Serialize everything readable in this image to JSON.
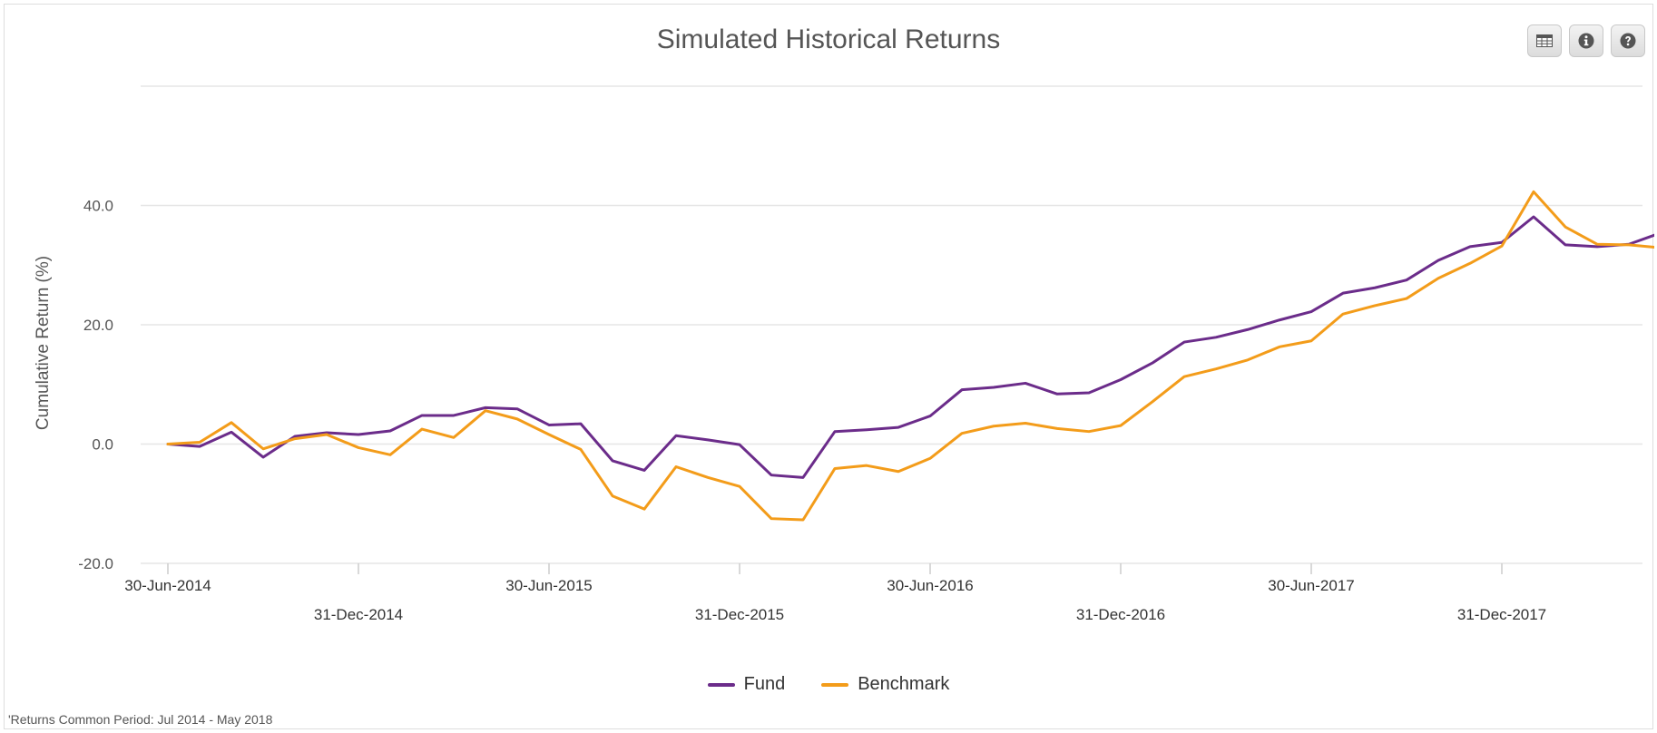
{
  "colors": {
    "fund": "#6b2c8a",
    "benchmark": "#f39c1a",
    "grid": "#e6e6e6",
    "axis_text": "#555555"
  },
  "toolbar": {
    "icons": [
      "table-icon",
      "info-icon",
      "help-icon"
    ]
  },
  "legend": {
    "fund_label": "Fund",
    "benchmark_label": "Benchmark"
  },
  "footnote": "'Returns Common Period: Jul 2014 - May 2018",
  "chart_data": {
    "type": "line",
    "title": "Simulated Historical Returns",
    "xlabel": "",
    "ylabel": "Cumulative Return (%)",
    "ylim": [
      -20,
      60
    ],
    "yticks": [
      -20,
      0,
      20,
      40
    ],
    "ytick_labels": [
      "-20.0",
      "0.0",
      "20.0",
      "40.0"
    ],
    "grid": true,
    "legend_position": "bottom-center",
    "x": [
      "30-Jun-2014",
      "31-Jul-2014",
      "31-Aug-2014",
      "30-Sep-2014",
      "31-Oct-2014",
      "30-Nov-2014",
      "31-Dec-2014",
      "31-Jan-2015",
      "28-Feb-2015",
      "31-Mar-2015",
      "30-Apr-2015",
      "31-May-2015",
      "30-Jun-2015",
      "31-Jul-2015",
      "31-Aug-2015",
      "30-Sep-2015",
      "31-Oct-2015",
      "30-Nov-2015",
      "31-Dec-2015",
      "31-Jan-2016",
      "29-Feb-2016",
      "31-Mar-2016",
      "30-Apr-2016",
      "31-May-2016",
      "30-Jun-2016",
      "31-Jul-2016",
      "31-Aug-2016",
      "30-Sep-2016",
      "31-Oct-2016",
      "30-Nov-2016",
      "31-Dec-2016",
      "31-Jan-2017",
      "28-Feb-2017",
      "31-Mar-2017",
      "30-Apr-2017",
      "31-May-2017",
      "30-Jun-2017",
      "31-Jul-2017",
      "31-Aug-2017",
      "30-Sep-2017",
      "31-Oct-2017",
      "30-Nov-2017",
      "31-Dec-2017",
      "31-Jan-2018",
      "28-Feb-2018",
      "31-Mar-2018",
      "30-Apr-2018",
      "31-May-2018"
    ],
    "xtick_labels": [
      "30-Jun-2014",
      "31-Dec-2014",
      "30-Jun-2015",
      "31-Dec-2015",
      "30-Jun-2016",
      "31-Dec-2016",
      "30-Jun-2017",
      "31-Dec-2017"
    ],
    "series": [
      {
        "name": "Fund",
        "color": "#6b2c8a",
        "values": [
          0.0,
          -0.4,
          2.0,
          -2.2,
          1.3,
          1.9,
          1.6,
          2.2,
          4.8,
          4.8,
          6.1,
          5.9,
          3.2,
          3.4,
          -2.8,
          -4.4,
          1.4,
          0.7,
          -0.1,
          -5.2,
          -5.6,
          2.1,
          2.4,
          2.8,
          4.7,
          9.1,
          9.5,
          10.2,
          8.4,
          8.6,
          10.8,
          13.6,
          17.1,
          17.9,
          19.2,
          20.8,
          22.2,
          25.3,
          26.2,
          27.5,
          30.8,
          33.1,
          33.8,
          38.1,
          33.4,
          33.1,
          33.5,
          35.4
        ]
      },
      {
        "name": "Benchmark",
        "color": "#f39c1a",
        "values": [
          0.0,
          0.3,
          3.6,
          -0.8,
          0.9,
          1.6,
          -0.6,
          -1.8,
          2.5,
          1.1,
          5.6,
          4.2,
          1.6,
          -0.9,
          -8.7,
          -10.9,
          -3.8,
          -5.6,
          -7.1,
          -12.5,
          -12.7,
          -4.1,
          -3.6,
          -4.6,
          -2.4,
          1.8,
          3.0,
          3.5,
          2.6,
          2.1,
          3.1,
          7.1,
          11.3,
          12.6,
          14.1,
          16.3,
          17.3,
          21.8,
          23.2,
          24.4,
          27.8,
          30.3,
          33.2,
          42.3,
          36.4,
          33.5,
          33.4,
          32.9
        ]
      }
    ]
  }
}
